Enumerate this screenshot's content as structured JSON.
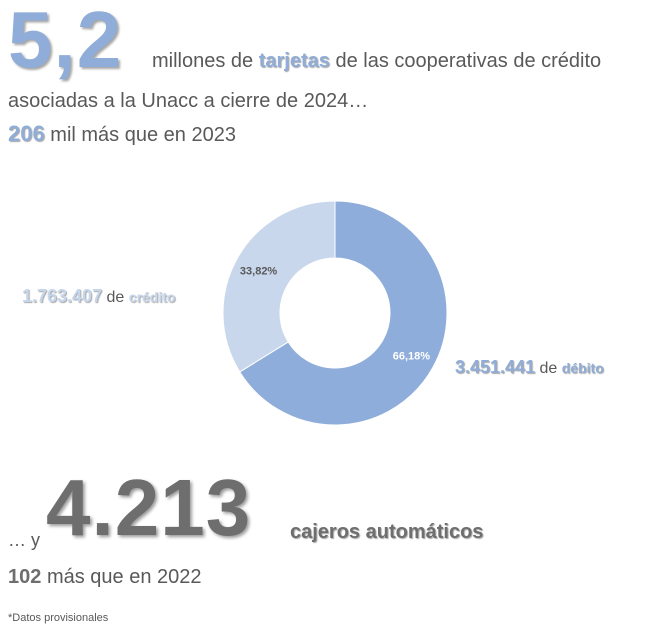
{
  "headline": {
    "number": "5,2",
    "line1_pre": "millones de",
    "line1_keyword": "tarjetas",
    "line1_post": "de las cooperativas de crédito",
    "line2": "asociadas a la Unacc a cierre de 2024…",
    "increase_number": "206",
    "increase_text": "mil más que en 2023"
  },
  "chart_data": {
    "type": "pie",
    "donut": true,
    "categories": [
      "débito",
      "crédito"
    ],
    "values": [
      3451441,
      1763407
    ],
    "percent_labels": [
      "66,18%",
      "33,82%"
    ],
    "colors": [
      "#8eadda",
      "#c8d7ec"
    ]
  },
  "credit_label": {
    "number": "1.763.407",
    "connector": "de",
    "keyword": "crédito"
  },
  "debit_label": {
    "number": "3.451.441",
    "connector": "de",
    "keyword": "débito"
  },
  "atm": {
    "prefix": "… y",
    "number": "4.213",
    "suffix": "cajeros automáticos",
    "increase_number": "102",
    "increase_text": "más que en 2022"
  },
  "footnote": "*Datos provisionales"
}
